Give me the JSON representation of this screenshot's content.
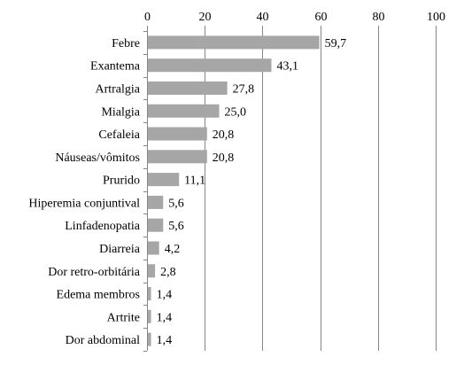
{
  "chart_data": {
    "type": "bar",
    "orientation": "horizontal",
    "categories": [
      "Febre",
      "Exantema",
      "Artralgia",
      "Mialgia",
      "Cefaleia",
      "Náuseas/vômitos",
      "Prurido",
      "Hiperemia conjuntival",
      "Linfadenopatia",
      "Diarreia",
      "Dor retro-orbitária",
      "Edema membros",
      "Artrite",
      "Dor abdominal"
    ],
    "values": [
      59.7,
      43.1,
      27.8,
      25.0,
      20.8,
      20.8,
      11.1,
      5.6,
      5.6,
      4.2,
      2.8,
      1.4,
      1.4,
      1.4
    ],
    "value_labels": [
      "59,7",
      "43,1",
      "27,8",
      "25,0",
      "20,8",
      "20,8",
      "11,1",
      "5,6",
      "5,6",
      "4,2",
      "2,8",
      "1,4",
      "1,4",
      "1,4"
    ],
    "x_ticks": [
      "0",
      "20",
      "40",
      "60",
      "80",
      "100"
    ],
    "xlim": [
      0,
      100
    ],
    "x_axis_position": "top",
    "grid": true,
    "bar_color": "#a6a6a6",
    "grid_color": "#868686"
  }
}
